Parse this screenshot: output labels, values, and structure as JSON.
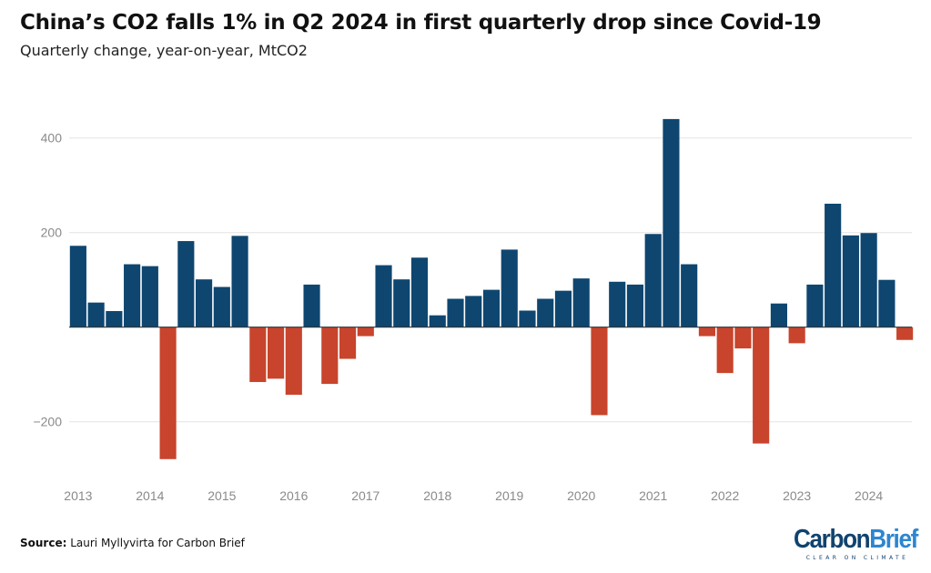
{
  "chart_data": {
    "type": "bar",
    "title": "China’s CO2 falls 1% in Q2 2024 in first quarterly drop since Covid-19",
    "subtitle": "Quarterly change, year-on-year, MtCO2",
    "values": [
      172,
      52,
      34,
      133,
      129,
      -279,
      182,
      101,
      85,
      193,
      -116,
      -109,
      -143,
      90,
      -120,
      -67,
      -19,
      131,
      101,
      147,
      25,
      60,
      66,
      79,
      164,
      35,
      60,
      77,
      103,
      -186,
      96,
      90,
      197,
      440,
      133,
      -19,
      -97,
      -45,
      -246,
      50,
      -34,
      90,
      261,
      194,
      199,
      100,
      -27
    ],
    "x_tick_labels": [
      "2013",
      "2014",
      "2015",
      "2016",
      "2017",
      "2018",
      "2019",
      "2020",
      "2021",
      "2022",
      "2023",
      "2024"
    ],
    "x_tick_every": 4,
    "y_ticks": [
      400,
      200,
      0,
      -200
    ],
    "y_tick_labels": [
      "400",
      "200",
      "",
      "−200"
    ],
    "ylim": [
      -300,
      450
    ],
    "grid": true,
    "colors": {
      "positive": "#0e4670",
      "negative": "#c8442c",
      "grid": "#e3e3e3",
      "zero_line": "#333333"
    }
  },
  "source": {
    "label": "Source:",
    "text": " Lauri Myllyvirta for Carbon Brief"
  },
  "logo": {
    "part1": "Carbon",
    "part2": "Brief",
    "tagline": "CLEAR ON CLIMATE"
  }
}
